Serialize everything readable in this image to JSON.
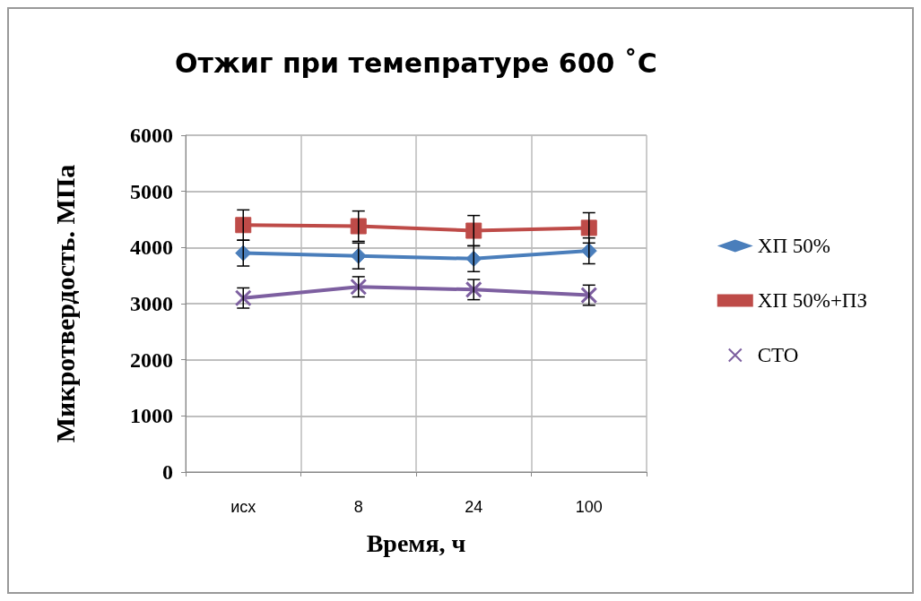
{
  "chart_data": {
    "type": "line",
    "title": "Отжиг при темепратуре 600 ˚C",
    "xlabel": "Время, ч",
    "ylabel": "Микротвердость. МПа",
    "categories": [
      "исх",
      "8",
      "24",
      "100"
    ],
    "ylim": [
      0,
      6000
    ],
    "yticks": [
      0,
      1000,
      2000,
      3000,
      4000,
      5000,
      6000
    ],
    "grid": true,
    "legend": "right",
    "series": [
      {
        "name": "ХП 50%",
        "color": "#4a7ebb",
        "marker": "diamond",
        "values": [
          3900,
          3850,
          3800,
          3940
        ],
        "errors": [
          230,
          230,
          230,
          230
        ]
      },
      {
        "name": "ХП 50%+ПЗ",
        "color": "#be4b48",
        "marker": "square",
        "values": [
          4400,
          4380,
          4300,
          4350
        ],
        "errors": [
          270,
          270,
          270,
          270
        ]
      },
      {
        "name": "СТО",
        "color": "#7d5fa0",
        "marker": "cross",
        "values": [
          3100,
          3300,
          3250,
          3150
        ],
        "errors": [
          180,
          180,
          180,
          180
        ]
      }
    ]
  }
}
